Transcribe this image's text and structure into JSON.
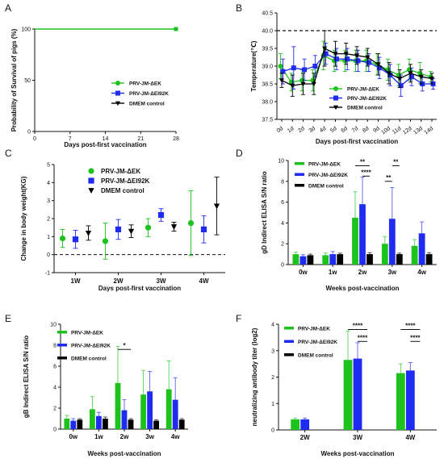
{
  "colors": {
    "green": "#1dc21d",
    "blue": "#1f2bf0",
    "black": "#000000"
  },
  "chart_data": [
    {
      "id": "A",
      "type": "line",
      "panel_label": "A",
      "xlabel": "Days post-first vaccination",
      "ylabel": "Probability of Survival of pigs (%)",
      "xlim": [
        0,
        28
      ],
      "ylim": [
        0,
        100
      ],
      "xticks": [
        0,
        7,
        14,
        21,
        28
      ],
      "yticks": [
        0,
        50,
        100
      ],
      "series": [
        {
          "name": "PRV-JM-ΔEK",
          "color": "green",
          "marker": "circle",
          "x": [
            0,
            28
          ],
          "y": [
            100,
            100
          ]
        },
        {
          "name": "PRV-JM-ΔEI92K",
          "color": "blue",
          "marker": "square",
          "x": [
            0,
            28
          ],
          "y": [
            100,
            100
          ]
        },
        {
          "name": "DMEM control",
          "color": "black",
          "marker": "triangle-down",
          "x": [
            0,
            28
          ],
          "y": [
            100,
            100
          ]
        }
      ]
    },
    {
      "id": "B",
      "type": "line",
      "panel_label": "B",
      "xlabel": "Days post-first vaccination",
      "ylabel": "Temperature(℃)",
      "ylim": [
        37.5,
        40.5
      ],
      "yticks": [
        37.5,
        38.0,
        38.5,
        39.0,
        39.5,
        40.0,
        40.5
      ],
      "ytick_labels": [
        "37.5",
        "38.0",
        "38.5",
        "39.0",
        "39.5",
        "40.0",
        "40.5"
      ],
      "reference_line": 40.0,
      "categories": [
        "0d",
        "1d",
        "2d",
        "3d",
        "4d",
        "5d",
        "6d",
        "7d",
        "8d",
        "9d",
        "10d",
        "11d",
        "12d",
        "13d",
        "14d"
      ],
      "series": [
        {
          "name": "PRV-JM-ΔEK",
          "color": "green",
          "marker": "circle",
          "values": [
            39.0,
            38.55,
            38.6,
            38.6,
            39.3,
            39.15,
            39.15,
            39.15,
            39.15,
            39.05,
            38.9,
            38.75,
            38.9,
            38.8,
            38.7
          ],
          "errors": [
            0.35,
            0.25,
            0.3,
            0.3,
            0.4,
            0.3,
            0.3,
            0.3,
            0.3,
            0.3,
            0.3,
            0.3,
            0.3,
            0.3,
            0.15
          ]
        },
        {
          "name": "PRV-JM-ΔEI92K",
          "color": "blue",
          "marker": "square",
          "values": [
            38.85,
            38.95,
            38.9,
            39.0,
            39.35,
            39.2,
            39.2,
            39.15,
            39.1,
            38.95,
            38.75,
            38.45,
            38.7,
            38.5,
            38.5
          ],
          "errors": [
            0.35,
            0.6,
            0.3,
            0.3,
            0.3,
            0.3,
            0.3,
            0.3,
            0.25,
            0.3,
            0.3,
            0.3,
            0.25,
            0.2,
            0.15
          ]
        },
        {
          "name": "DMEM control",
          "color": "black",
          "marker": "triangle-down",
          "values": [
            38.6,
            38.45,
            38.5,
            38.5,
            39.5,
            39.35,
            39.35,
            39.3,
            39.25,
            39.05,
            38.8,
            38.65,
            38.8,
            38.7,
            38.65
          ],
          "errors": [
            0.2,
            0.3,
            0.3,
            0.3,
            0.5,
            0.35,
            0.3,
            0.25,
            0.25,
            0.3,
            0.3,
            0.25,
            0.25,
            0.2,
            0.15
          ]
        }
      ]
    },
    {
      "id": "C",
      "type": "scatter",
      "panel_label": "C",
      "xlabel": "Days post-first vaccination",
      "ylabel": "Change in body weight(KG)",
      "ylim": [
        -1,
        5
      ],
      "yticks": [
        -1,
        0,
        1,
        2,
        3,
        4,
        5
      ],
      "reference_line": 0,
      "categories": [
        "1W",
        "2W",
        "3W",
        "4W"
      ],
      "series": [
        {
          "name": "PRV-JM-ΔEK",
          "color": "green",
          "marker": "circle",
          "values": [
            0.9,
            0.75,
            1.5,
            1.75
          ],
          "errors": [
            0.5,
            1.0,
            0.5,
            1.8
          ]
        },
        {
          "name": "PRV-JM-ΔEI92K",
          "color": "blue",
          "marker": "square",
          "values": [
            0.85,
            1.4,
            2.2,
            1.4
          ],
          "errors": [
            0.5,
            0.55,
            0.35,
            0.75
          ]
        },
        {
          "name": "DMEM control",
          "color": "black",
          "marker": "triangle-down",
          "values": [
            1.2,
            1.3,
            1.55,
            2.7
          ],
          "errors": [
            0.4,
            0.35,
            0.25,
            1.6
          ]
        }
      ]
    },
    {
      "id": "D",
      "type": "bar",
      "panel_label": "D",
      "xlabel": "Weeks post-vaccination",
      "ylabel": "gD Indirect ELISA S/N ratio",
      "ylim": [
        0,
        10
      ],
      "yticks": [
        0,
        2,
        4,
        6,
        8,
        10
      ],
      "categories": [
        "0w",
        "1w",
        "2w",
        "3w",
        "4w"
      ],
      "series": [
        {
          "name": "PRV-JM-ΔEK",
          "color": "green",
          "values": [
            1.0,
            0.9,
            4.5,
            2.0,
            1.8
          ],
          "errors": [
            0.2,
            0.2,
            2.5,
            0.7,
            0.6
          ]
        },
        {
          "name": "PRV-JM-ΔEI92K",
          "color": "blue",
          "values": [
            0.8,
            1.0,
            5.8,
            4.4,
            3.0
          ],
          "errors": [
            0.15,
            0.25,
            2.6,
            3.0,
            1.1
          ]
        },
        {
          "name": "DMEM control",
          "color": "black",
          "values": [
            0.9,
            1.0,
            1.0,
            1.0,
            1.0
          ],
          "errors": [
            0.1,
            0.1,
            0.15,
            0.1,
            0.15
          ]
        }
      ],
      "significance": [
        {
          "label": "**",
          "from": [
            2,
            0
          ],
          "to": [
            2,
            2
          ],
          "y": 9.5
        },
        {
          "label": "****",
          "from": [
            2,
            1
          ],
          "to": [
            2,
            2
          ],
          "y": 8.5
        },
        {
          "label": "**",
          "from": [
            3,
            0
          ],
          "to": [
            3,
            1
          ],
          "y": 8.0
        },
        {
          "label": "**",
          "from": [
            3,
            1
          ],
          "to": [
            3,
            2
          ],
          "y": 9.5
        }
      ]
    },
    {
      "id": "E",
      "type": "bar",
      "panel_label": "E",
      "xlabel": "Weeks post-vaccination",
      "ylabel": "gB Indirect ELISA S/N ratio",
      "ylim": [
        0,
        10
      ],
      "yticks": [
        0,
        2,
        4,
        6,
        8,
        10
      ],
      "categories": [
        "0w",
        "1w",
        "2w",
        "3w",
        "4w"
      ],
      "series": [
        {
          "name": "PRV-JM-ΔEK",
          "color": "green",
          "values": [
            1.0,
            1.9,
            4.4,
            3.3,
            3.8
          ],
          "errors": [
            0.3,
            1.2,
            3.5,
            2.3,
            2.7
          ]
        },
        {
          "name": "PRV-JM-ΔEI92K",
          "color": "blue",
          "values": [
            0.8,
            1.25,
            1.8,
            3.6,
            2.8
          ],
          "errors": [
            0.2,
            0.35,
            1.0,
            1.9,
            2.1
          ]
        },
        {
          "name": "DMEM control",
          "color": "black",
          "values": [
            0.9,
            1.0,
            0.9,
            0.8,
            0.9
          ],
          "errors": [
            0.1,
            0.15,
            0.1,
            0.1,
            0.1
          ]
        }
      ],
      "significance": [
        {
          "label": "*",
          "from": [
            2,
            0
          ],
          "to": [
            2,
            2
          ],
          "y": 7.6
        }
      ]
    },
    {
      "id": "F",
      "type": "bar",
      "panel_label": "F",
      "xlabel": "Weeks post-vaccination",
      "ylabel": "neutralizing antibody titer (log2)",
      "ylim": [
        0,
        4
      ],
      "yticks": [
        0,
        1,
        2,
        3,
        4
      ],
      "categories": [
        "2W",
        "3W",
        "4W"
      ],
      "series": [
        {
          "name": "PRV-JM-ΔEK",
          "color": "green",
          "values": [
            0.4,
            2.65,
            2.15
          ],
          "errors": [
            0.05,
            1.1,
            0.35
          ]
        },
        {
          "name": "PRV-JM-ΔEI92K",
          "color": "blue",
          "values": [
            0.4,
            2.7,
            2.25
          ],
          "errors": [
            0.05,
            0.6,
            0.3
          ]
        },
        {
          "name": "DMEM control",
          "color": "black",
          "values": [
            0,
            0,
            0
          ],
          "errors": [
            0,
            0,
            0
          ]
        }
      ],
      "significance": [
        {
          "label": "****",
          "from": [
            1,
            0
          ],
          "to": [
            1,
            2
          ],
          "y": 3.8
        },
        {
          "label": "****",
          "from": [
            1,
            1
          ],
          "to": [
            1,
            2
          ],
          "y": 3.35
        },
        {
          "label": "****",
          "from": [
            2,
            0
          ],
          "to": [
            2,
            2
          ],
          "y": 3.8
        },
        {
          "label": "****",
          "from": [
            2,
            1
          ],
          "to": [
            2,
            2
          ],
          "y": 3.35
        }
      ]
    }
  ]
}
